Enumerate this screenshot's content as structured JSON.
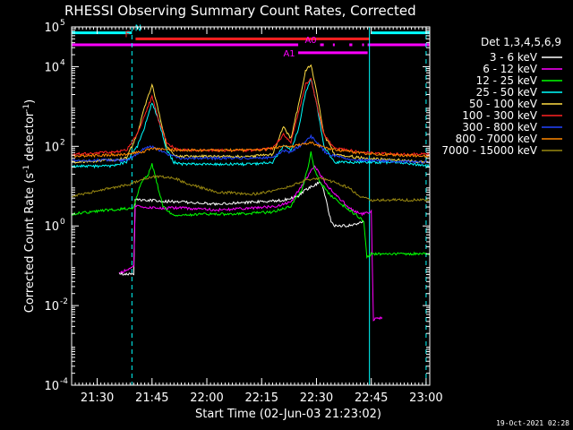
{
  "chart_data": {
    "type": "line",
    "title": "RHESSI Observing Summary Count Rates, Corrected",
    "xlabel": "Start Time (02-Jun-03 21:23:02)",
    "ylabel_main": "Corrected Count Rate (s",
    "ylabel_sup1": "-1",
    "ylabel_mid": " detector",
    "ylabel_sup2": "-1",
    "ylabel_end": ")",
    "x_unit": "minutes since 21:23:02",
    "xlim": [
      0,
      98
    ],
    "ylim_log10": [
      -4,
      5
    ],
    "y_tick_exponents": [
      -4,
      -2,
      0,
      2,
      4,
      5
    ],
    "x_ticks": [
      {
        "label": "21:30",
        "value": 7
      },
      {
        "label": "21:45",
        "value": 22
      },
      {
        "label": "22:00",
        "value": 37
      },
      {
        "label": "22:15",
        "value": 52
      },
      {
        "label": "22:30",
        "value": 67
      },
      {
        "label": "22:45",
        "value": 82
      },
      {
        "label": "23:00",
        "value": 97
      }
    ],
    "legend_title": "Det 1,3,4,5,6,9",
    "legend_position": "right",
    "series": [
      {
        "name": "3 - 6 keV",
        "color": "#ffffff",
        "x": [
          13,
          17,
          17.4,
          20,
          30,
          40,
          50,
          58,
          62,
          64,
          66,
          68,
          69,
          70,
          71,
          72,
          75,
          80
        ],
        "log10": [
          -1.2,
          -1.2,
          0.65,
          0.65,
          0.6,
          0.55,
          0.6,
          0.65,
          0.75,
          0.9,
          1.0,
          1.1,
          0.9,
          0.5,
          0.1,
          0.0,
          0.0,
          0.1
        ]
      },
      {
        "name": "6 - 12 keV",
        "color": "#ff00ff",
        "x": [
          13,
          17,
          17.4,
          22,
          30,
          40,
          50,
          56,
          60,
          63,
          65,
          66.5,
          68,
          70,
          72,
          76,
          79,
          82,
          82.6,
          85
        ],
        "log10": [
          -1.2,
          -1.0,
          0.5,
          0.45,
          0.45,
          0.4,
          0.45,
          0.5,
          0.6,
          1.0,
          1.3,
          1.5,
          1.3,
          1.0,
          0.8,
          0.45,
          0.3,
          0.35,
          -2.35,
          -2.3
        ]
      },
      {
        "name": "12 - 25 keV",
        "color": "#00ff00",
        "x": [
          0,
          10,
          17,
          19,
          21,
          22,
          23,
          25,
          28,
          35,
          45,
          55,
          60,
          63,
          64.5,
          65.5,
          66.5,
          68,
          70,
          73,
          76,
          79,
          80,
          80.8,
          82,
          90,
          98
        ],
        "log10": [
          0.3,
          0.4,
          0.45,
          1.1,
          1.3,
          1.55,
          1.2,
          0.5,
          0.25,
          0.3,
          0.3,
          0.35,
          0.5,
          0.9,
          1.4,
          1.85,
          1.4,
          1.1,
          0.85,
          0.6,
          0.4,
          0.2,
          0.1,
          -0.8,
          -0.7,
          -0.7,
          -0.7
        ]
      },
      {
        "name": "25 - 50 keV",
        "color": "#00ffff",
        "x": [
          0,
          10,
          15,
          18,
          20,
          22,
          24,
          26,
          28,
          30,
          40,
          50,
          55,
          58,
          60,
          62,
          64,
          65.5,
          67,
          69,
          72,
          80,
          90,
          98
        ],
        "log10": [
          1.5,
          1.5,
          1.6,
          2.0,
          2.5,
          3.1,
          2.6,
          1.9,
          1.6,
          1.55,
          1.55,
          1.55,
          1.6,
          2.0,
          1.9,
          2.4,
          3.35,
          3.7,
          3.1,
          2.0,
          1.6,
          1.6,
          1.6,
          1.5
        ]
      },
      {
        "name": "50 - 100 keV",
        "color": "#ffdd44",
        "x": [
          0,
          10,
          15,
          18,
          20,
          22,
          24,
          26,
          28,
          30,
          40,
          50,
          55,
          58,
          60,
          62,
          64,
          65.5,
          67,
          69,
          72,
          80,
          90,
          98
        ],
        "log10": [
          1.6,
          1.65,
          1.7,
          2.3,
          3.0,
          3.55,
          2.8,
          2.0,
          1.8,
          1.75,
          1.75,
          1.75,
          1.8,
          2.5,
          2.2,
          3.0,
          3.9,
          4.05,
          3.4,
          2.3,
          1.8,
          1.7,
          1.65,
          1.6
        ]
      },
      {
        "name": "100 - 300 keV",
        "color": "#ff2222",
        "x": [
          0,
          10,
          15,
          18,
          20,
          22,
          24,
          26,
          28,
          30,
          40,
          50,
          55,
          58,
          60,
          62,
          64,
          65.5,
          67,
          69,
          72,
          80,
          90,
          98
        ],
        "log10": [
          1.8,
          1.85,
          1.9,
          2.3,
          2.8,
          3.25,
          2.6,
          2.1,
          1.95,
          1.9,
          1.9,
          1.9,
          1.95,
          2.3,
          2.1,
          2.8,
          3.55,
          3.7,
          3.1,
          2.3,
          1.95,
          1.85,
          1.8,
          1.8
        ]
      },
      {
        "name": "300 - 800 keV",
        "color": "#2244ff",
        "x": [
          0,
          15,
          18,
          20,
          22,
          24,
          26,
          30,
          40,
          50,
          55,
          58,
          60,
          63,
          65.5,
          68,
          70,
          75,
          80,
          90,
          98
        ],
        "log10": [
          1.65,
          1.65,
          1.8,
          1.95,
          2.0,
          1.9,
          1.8,
          1.7,
          1.7,
          1.7,
          1.72,
          1.9,
          1.85,
          2.05,
          2.25,
          2.0,
          1.8,
          1.7,
          1.65,
          1.62,
          1.6
        ]
      },
      {
        "name": "800 - 7000 keV",
        "color": "#ff8800",
        "x": [
          0,
          15,
          20,
          22,
          25,
          30,
          40,
          50,
          55,
          58,
          60,
          63,
          65.5,
          68,
          70,
          75,
          80,
          90,
          98
        ],
        "log10": [
          1.75,
          1.8,
          1.88,
          1.95,
          1.92,
          1.9,
          1.9,
          1.9,
          1.95,
          2.0,
          1.98,
          2.05,
          2.1,
          2.0,
          1.95,
          1.88,
          1.82,
          1.78,
          1.75
        ]
      },
      {
        "name": "7000 - 15000 keV",
        "color": "#998811",
        "x": [
          0,
          8,
          16,
          20,
          24,
          28,
          32,
          40,
          50,
          56,
          60,
          64,
          68,
          72,
          76,
          78,
          80,
          82,
          90,
          98
        ],
        "log10": [
          0.75,
          0.9,
          1.05,
          1.2,
          1.25,
          1.2,
          1.05,
          0.85,
          0.8,
          0.9,
          1.0,
          1.15,
          1.2,
          1.1,
          0.95,
          0.8,
          0.7,
          0.65,
          0.65,
          0.65
        ]
      }
    ],
    "flag_bars": [
      {
        "label": "N",
        "color": "#00ffff",
        "log10": 4.85,
        "segments": [
          [
            0,
            16.5
          ],
          [
            82,
            98
          ]
        ]
      },
      {
        "label": "F",
        "color": "#ff2020",
        "log10": 4.7,
        "segments": [
          [
            17.5,
            81.5
          ]
        ]
      },
      {
        "label": "A0",
        "color": "#ff00ff",
        "log10": 4.55,
        "segments": [
          [
            0,
            62
          ],
          [
            68,
            69
          ],
          [
            71.5,
            72
          ],
          [
            76,
            76.8
          ],
          [
            79.5,
            80
          ],
          [
            81,
            98
          ]
        ]
      },
      {
        "label": "A1",
        "color": "#ff00ff",
        "log10": 4.35,
        "segments": [
          [
            62,
            81
          ]
        ]
      }
    ],
    "vlines": [
      {
        "x": 16.5,
        "color": "#00ffff",
        "style": "dashed"
      },
      {
        "x": 81.5,
        "color": "#00ffff",
        "style": "solid"
      },
      {
        "x": 97,
        "color": "#00ffff",
        "style": "dashed"
      }
    ],
    "footer_date": "19-Oct-2021 02:28"
  }
}
